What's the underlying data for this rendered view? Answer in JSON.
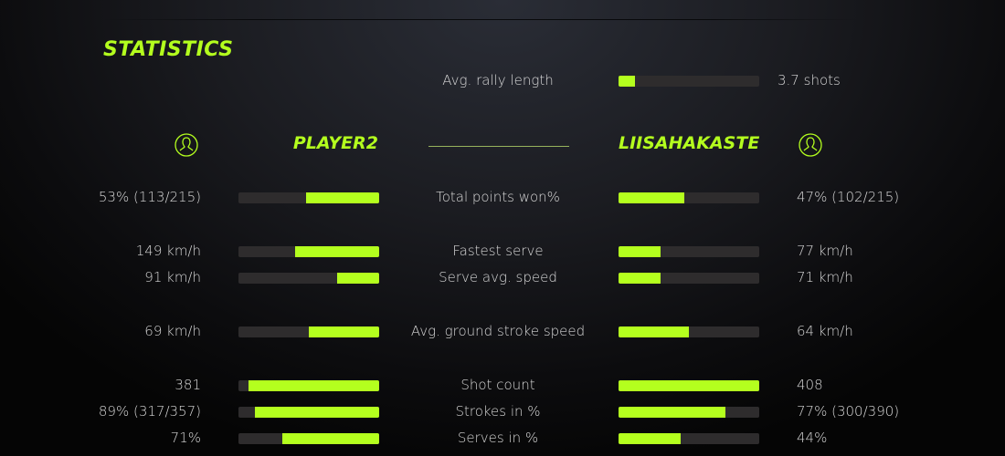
{
  "title": "STATISTICS",
  "accent_color": "#b4ff1e",
  "rally": {
    "label": "Avg. rally length",
    "value": "3.7 shots",
    "fill": 0.12
  },
  "players": {
    "left": {
      "name": "PLAYER2",
      "icon": "user-icon"
    },
    "right": {
      "name": "LIISAHAKASTE",
      "icon": "user-icon"
    }
  },
  "stats": [
    {
      "label": "Total points won%",
      "left": "53% (113/215)",
      "right": "47% (102/215)",
      "left_fill": 0.52,
      "right_fill": 0.47
    },
    {
      "label": "Fastest serve",
      "left": "149 km/h",
      "right": "77 km/h",
      "left_fill": 0.6,
      "right_fill": 0.3
    },
    {
      "label": "Serve avg. speed",
      "left": "91 km/h",
      "right": "71 km/h",
      "left_fill": 0.3,
      "right_fill": 0.3
    },
    {
      "label": "Avg. ground stroke speed",
      "left": "69 km/h",
      "right": "64 km/h",
      "left_fill": 0.5,
      "right_fill": 0.5
    },
    {
      "label": "Shot count",
      "left": "381",
      "right": "408",
      "left_fill": 0.93,
      "right_fill": 1.0
    },
    {
      "label": "Strokes in %",
      "left": "89% (317/357)",
      "right": "77% (300/390)",
      "left_fill": 0.88,
      "right_fill": 0.76
    },
    {
      "label": "Serves in %",
      "left": "71%",
      "right": "44%",
      "left_fill": 0.69,
      "right_fill": 0.44
    }
  ]
}
